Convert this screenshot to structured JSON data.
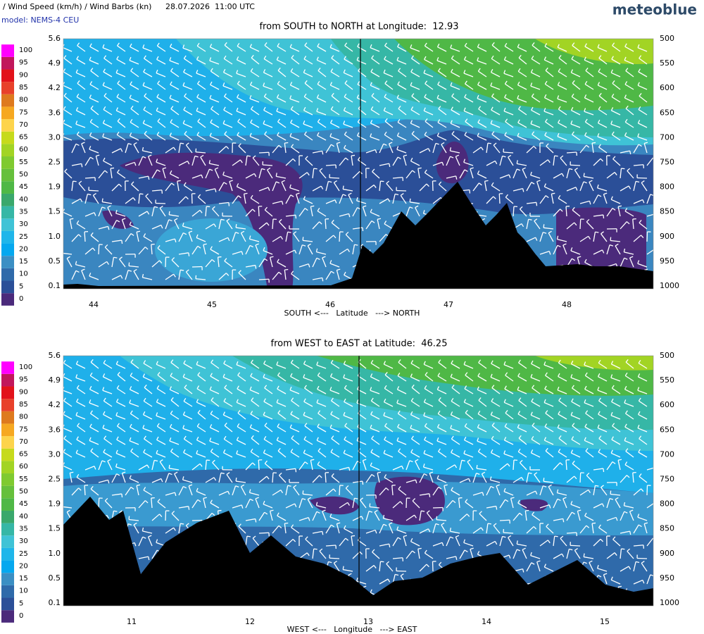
{
  "header": {
    "variable": "/ Wind Speed (km/h) / Wind Barbs (kn)",
    "datetime": "28.07.2026  11:00 UTC",
    "brand": "meteoblue",
    "model": "model: NEMS-4 CEU"
  },
  "legend": {
    "values": [
      0,
      5,
      10,
      15,
      20,
      25,
      30,
      35,
      40,
      45,
      50,
      55,
      60,
      65,
      70,
      75,
      80,
      85,
      90,
      95,
      100
    ],
    "colors": [
      "#4b2a7b",
      "#2b4f98",
      "#2f6aaa",
      "#3b8fc4",
      "#05a8ef",
      "#1fb6ea",
      "#3fc3d6",
      "#36b7a6",
      "#3aa86c",
      "#4fb846",
      "#66c03c",
      "#7fca30",
      "#a2d424",
      "#c6da1c",
      "#fdd44c",
      "#f6a821",
      "#de7a1e",
      "#e8412a",
      "#e2121a",
      "#c1175c",
      "#ff00ff"
    ]
  },
  "panels": [
    {
      "title": "from SOUTH to NORTH at Longitude:  12.93",
      "left_axis": [
        "5.6",
        "4.9",
        "4.2",
        "3.6",
        "3.0",
        "2.5",
        "1.9",
        "1.5",
        "1.0",
        "0.5",
        "0.1"
      ],
      "right_axis": [
        500,
        550,
        600,
        650,
        700,
        750,
        800,
        850,
        900,
        950,
        1000
      ],
      "x_ticks": [
        44,
        45,
        46,
        47,
        48
      ],
      "x_label": "SOUTH <---   Latitude   ---> NORTH"
    },
    {
      "title": "from WEST to EAST at Latitude:  46.25",
      "left_axis": [
        "5.6",
        "4.9",
        "4.2",
        "3.6",
        "3.0",
        "2.5",
        "1.9",
        "1.5",
        "1.0",
        "0.5",
        "0.1"
      ],
      "right_axis": [
        500,
        550,
        600,
        650,
        700,
        750,
        800,
        850,
        900,
        950,
        1000
      ],
      "x_ticks": [
        11,
        12,
        13,
        14,
        15
      ],
      "x_label": "WEST <---   Longitude   ---> EAST"
    }
  ]
}
